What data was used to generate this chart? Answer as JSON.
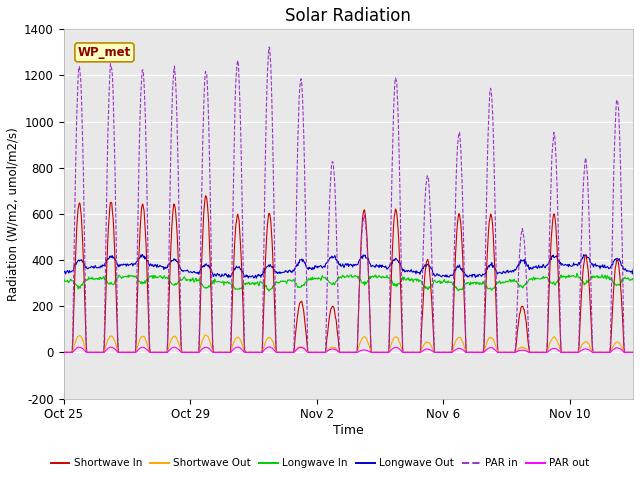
{
  "title": "Solar Radiation",
  "xlabel": "Time",
  "ylabel": "Radiation (W/m2, umol/m2/s)",
  "ylim": [
    -200,
    1400
  ],
  "yticks": [
    -200,
    0,
    200,
    400,
    600,
    800,
    1000,
    1200,
    1400
  ],
  "station_label": "WP_met",
  "background_color": "#e8e8e8",
  "fig_background": "#ffffff",
  "legend": [
    {
      "label": "Shortwave In",
      "color": "#cc0000",
      "ls": "-"
    },
    {
      "label": "Shortwave Out",
      "color": "#ffa500",
      "ls": "-"
    },
    {
      "label": "Longwave In",
      "color": "#00cc00",
      "ls": "-"
    },
    {
      "label": "Longwave Out",
      "color": "#0000cc",
      "ls": "-"
    },
    {
      "label": "PAR in",
      "color": "#9933cc",
      "ls": "--"
    },
    {
      "label": "PAR out",
      "color": "#ff00ff",
      "ls": "-"
    }
  ],
  "xtick_labels": [
    "Oct 25",
    "Oct 29",
    "Nov 2",
    "Nov 6",
    "Nov 10"
  ],
  "xtick_positions": [
    0,
    4,
    8,
    12,
    16
  ],
  "n_days": 18,
  "day_peaks_sw": [
    650,
    650,
    640,
    640,
    680,
    600,
    600,
    220,
    200,
    620,
    620,
    400,
    600,
    600,
    200,
    600,
    420,
    400
  ],
  "day_peaks_par": [
    1240,
    1250,
    1230,
    1230,
    1220,
    1260,
    1320,
    1190,
    830,
    590,
    1190,
    770,
    950,
    1140,
    530,
    950,
    830,
    1100
  ]
}
